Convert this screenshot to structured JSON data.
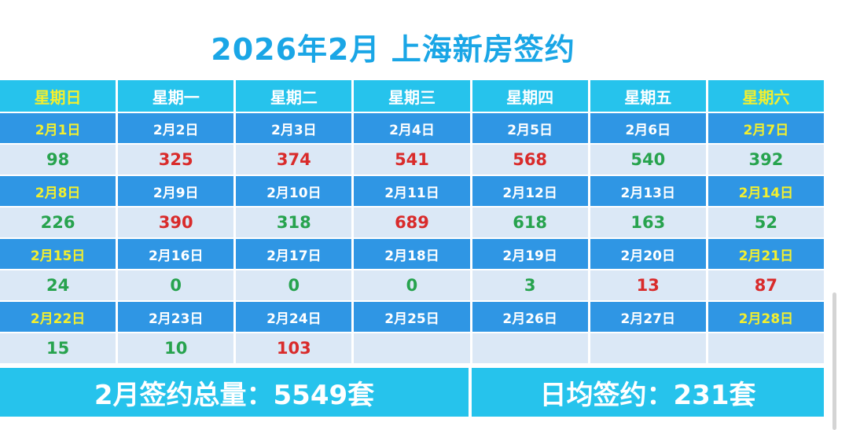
{
  "title": "2026年2月 上海新房签约",
  "weekday_headers": [
    {
      "label": "星期日",
      "weekend": true
    },
    {
      "label": "星期一",
      "weekend": false
    },
    {
      "label": "星期二",
      "weekend": false
    },
    {
      "label": "星期三",
      "weekend": false
    },
    {
      "label": "星期四",
      "weekend": false
    },
    {
      "label": "星期五",
      "weekend": false
    },
    {
      "label": "星期六",
      "weekend": true
    }
  ],
  "weeks": [
    {
      "dates": [
        "2月1日",
        "2月2日",
        "2月3日",
        "2月4日",
        "2月5日",
        "2月6日",
        "2月7日"
      ],
      "values": [
        "98",
        "325",
        "374",
        "541",
        "568",
        "540",
        "392"
      ],
      "colors": [
        "green",
        "red",
        "red",
        "red",
        "red",
        "green",
        "green"
      ]
    },
    {
      "dates": [
        "2月8日",
        "2月9日",
        "2月10日",
        "2月11日",
        "2月12日",
        "2月13日",
        "2月14日"
      ],
      "values": [
        "226",
        "390",
        "318",
        "689",
        "618",
        "163",
        "52"
      ],
      "colors": [
        "green",
        "red",
        "green",
        "red",
        "green",
        "green",
        "green"
      ]
    },
    {
      "dates": [
        "2月15日",
        "2月16日",
        "2月17日",
        "2月18日",
        "2月19日",
        "2月20日",
        "2月21日"
      ],
      "values": [
        "24",
        "0",
        "0",
        "0",
        "3",
        "13",
        "87"
      ],
      "colors": [
        "green",
        "green",
        "green",
        "green",
        "green",
        "red",
        "red"
      ]
    },
    {
      "dates": [
        "2月22日",
        "2月23日",
        "2月24日",
        "2月25日",
        "2月26日",
        "2月27日",
        "2月28日"
      ],
      "values": [
        "15",
        "10",
        "103",
        "",
        "",
        "",
        ""
      ],
      "colors": [
        "green",
        "green",
        "red",
        "",
        "",
        "",
        ""
      ]
    }
  ],
  "summary": {
    "total_label": "2月签约总量：5549套",
    "average_label": "日均签约：231套"
  },
  "colors": {
    "title": "#1aa6e6",
    "header_bg": "#26c3ec",
    "date_bg": "#2f96e4",
    "value_bg": "#dbe8f6",
    "weekend_text": "#f3ef2e",
    "red_value": "#d92b2b",
    "green_value": "#27a34e"
  }
}
